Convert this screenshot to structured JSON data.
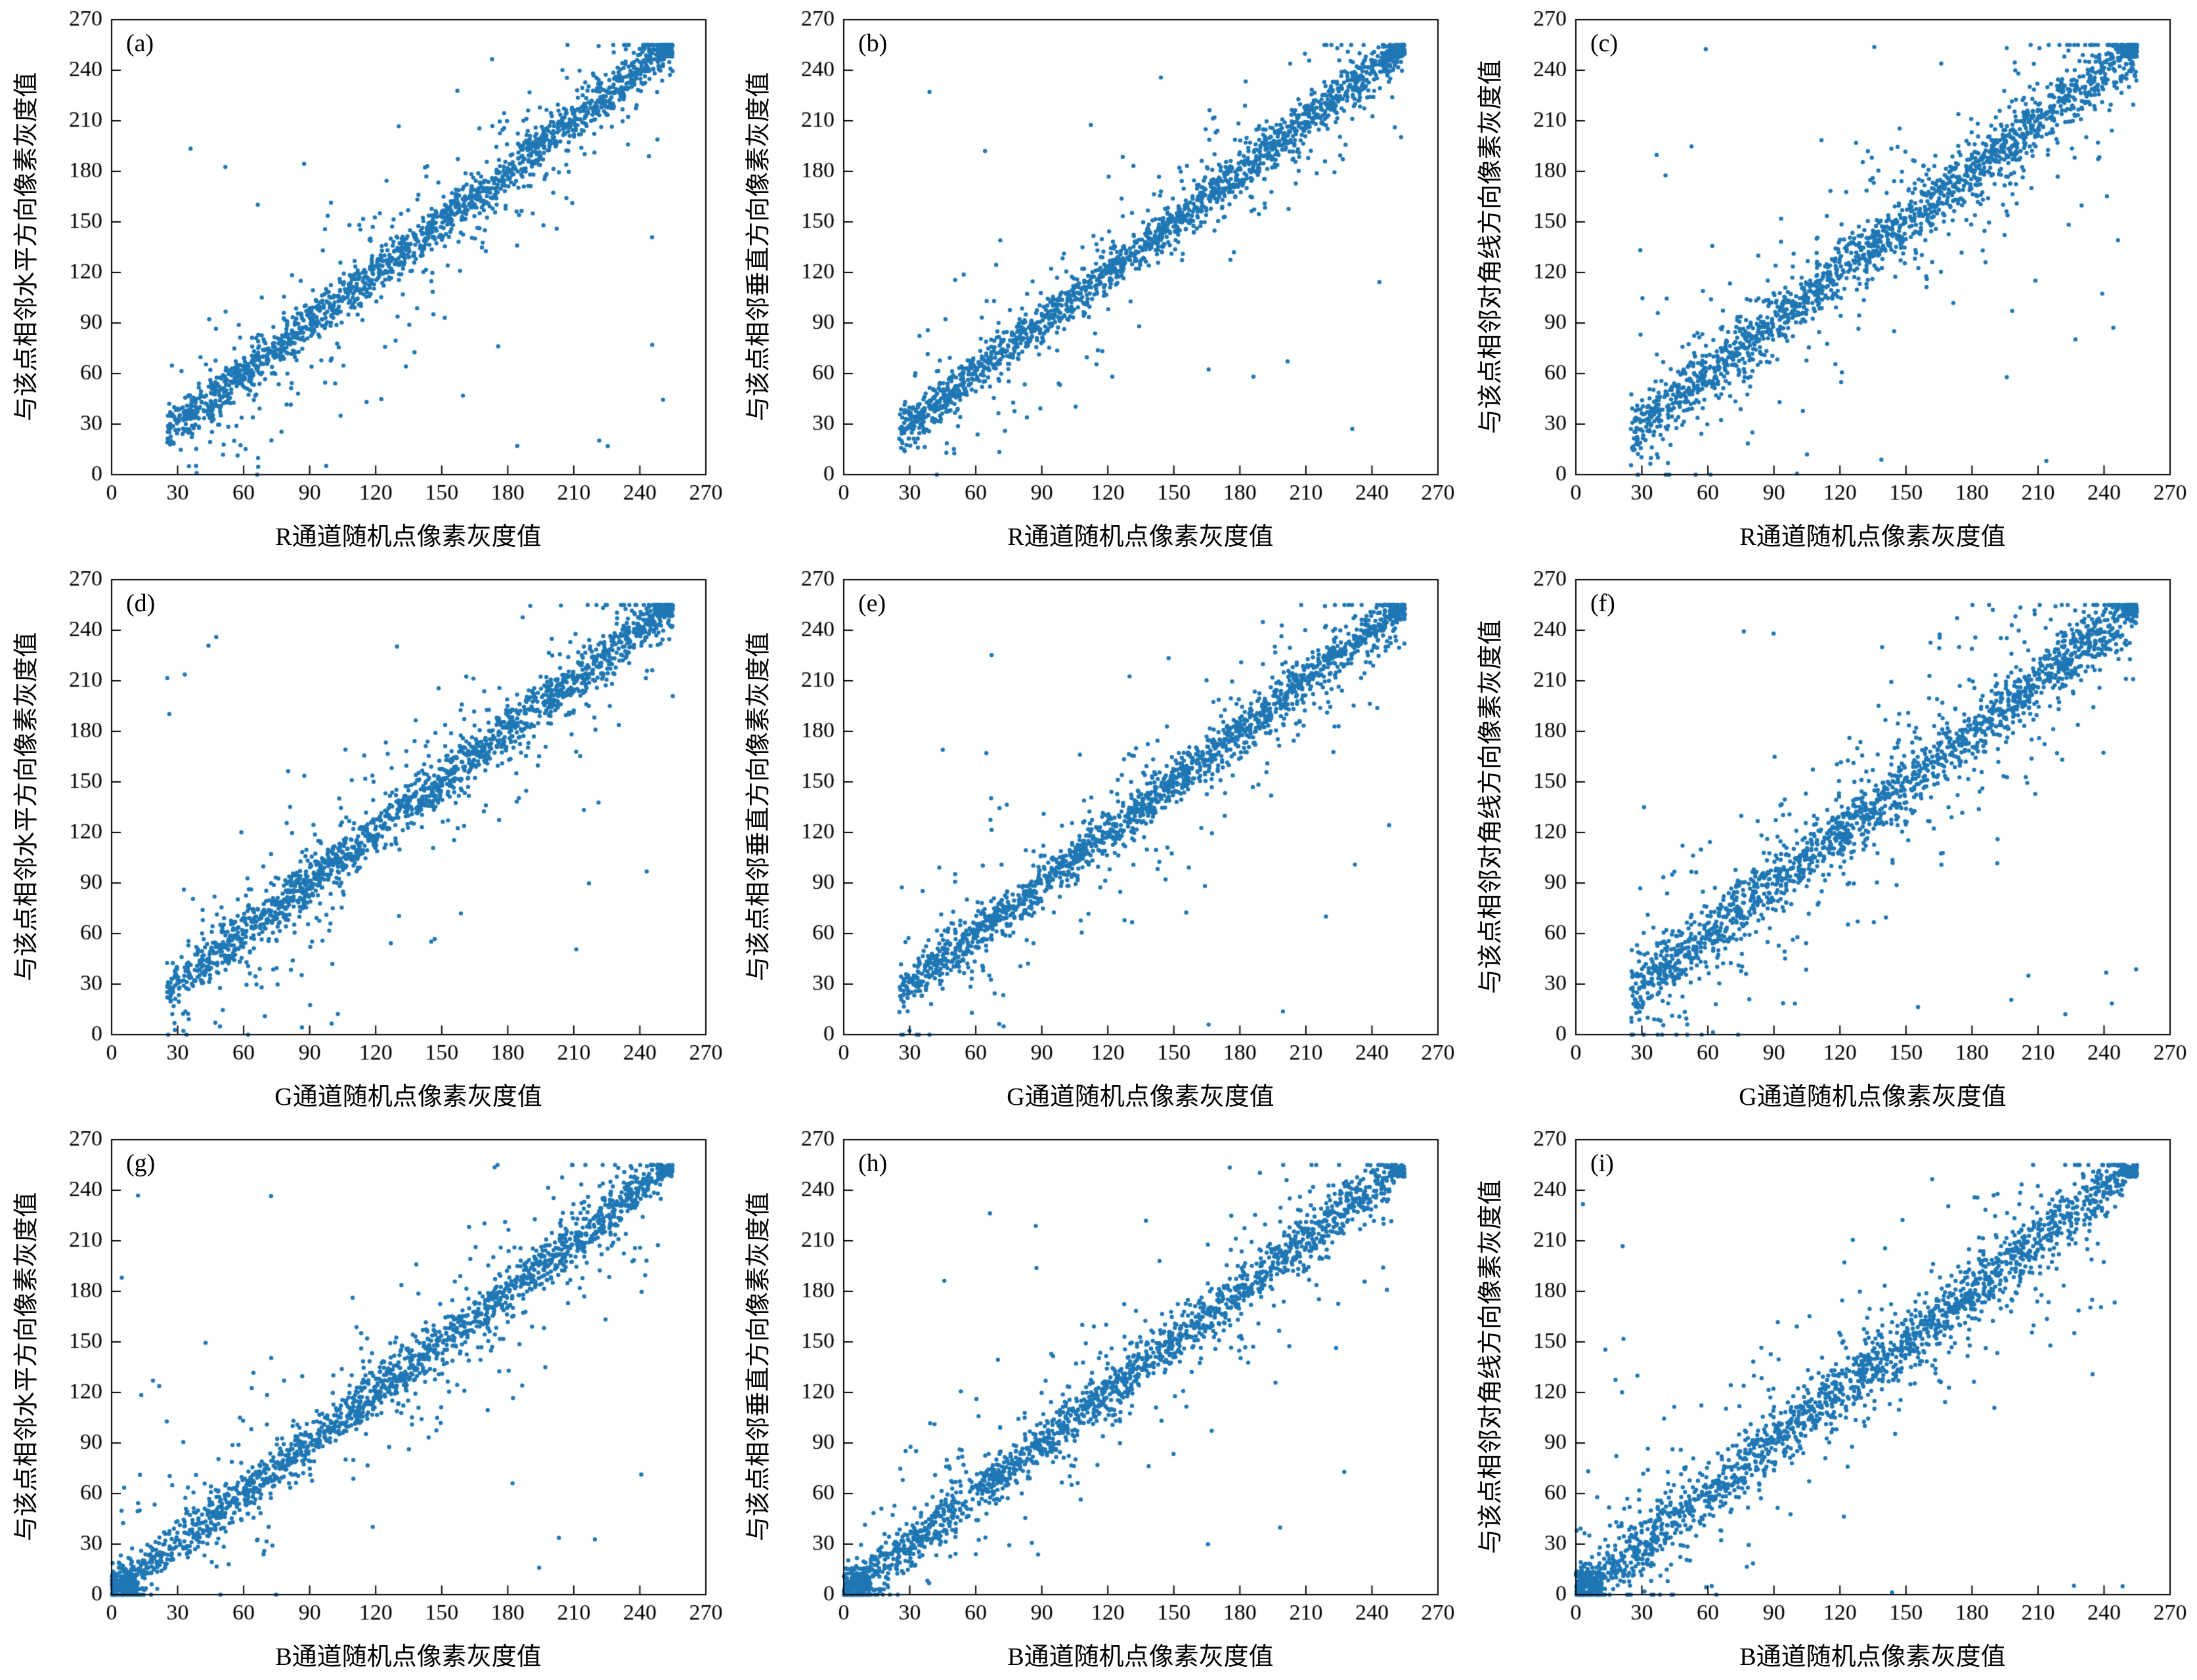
{
  "page": {
    "description": "3x3 grid of adjacent-pixel correlation scatter plots for R, G, B channels in horizontal, vertical and diagonal directions",
    "background_color": "#ffffff",
    "axis_color": "#000000"
  },
  "chart_data": [
    {
      "type": "scatter",
      "panel": "(a)",
      "xlabel": "R通道随机点像素灰度值",
      "ylabel": "与该点相邻水平方向像素灰度值",
      "xlim": [
        0,
        270
      ],
      "ylim": [
        0,
        270
      ],
      "xticks": [
        0,
        30,
        60,
        90,
        120,
        150,
        180,
        210,
        240,
        270
      ],
      "yticks": [
        0,
        30,
        60,
        90,
        120,
        150,
        180,
        210,
        240,
        270
      ],
      "marker_color": "#1f77b4",
      "legend": "none",
      "grid": false,
      "generation": {
        "seed": 11,
        "n_dense": 1500,
        "noise_dense": 6.5,
        "n_spread": 300,
        "noise_spread": 28,
        "n_outliers": 28,
        "x_min": 25,
        "x_max": 255,
        "saturation_cluster": 110,
        "origin_cluster": 0
      }
    },
    {
      "type": "scatter",
      "panel": "(b)",
      "xlabel": "R通道随机点像素灰度值",
      "ylabel": "与该点相邻垂直方向像素灰度值",
      "xlim": [
        0,
        270
      ],
      "ylim": [
        0,
        270
      ],
      "xticks": [
        0,
        30,
        60,
        90,
        120,
        150,
        180,
        210,
        240,
        270
      ],
      "yticks": [
        0,
        30,
        60,
        90,
        120,
        150,
        180,
        210,
        240,
        270
      ],
      "marker_color": "#1f77b4",
      "legend": "none",
      "grid": false,
      "generation": {
        "seed": 22,
        "n_dense": 1500,
        "noise_dense": 6.0,
        "n_spread": 300,
        "noise_spread": 25,
        "n_outliers": 20,
        "x_min": 25,
        "x_max": 255,
        "saturation_cluster": 110,
        "origin_cluster": 0
      }
    },
    {
      "type": "scatter",
      "panel": "(c)",
      "xlabel": "R通道随机点像素灰度值",
      "ylabel": "与该点相邻对角线方向像素灰度值",
      "xlim": [
        0,
        270
      ],
      "ylim": [
        0,
        270
      ],
      "xticks": [
        0,
        30,
        60,
        90,
        120,
        150,
        180,
        210,
        240,
        270
      ],
      "yticks": [
        0,
        30,
        60,
        90,
        120,
        150,
        180,
        210,
        240,
        270
      ],
      "marker_color": "#1f77b4",
      "legend": "none",
      "grid": false,
      "generation": {
        "seed": 33,
        "n_dense": 1500,
        "noise_dense": 8.0,
        "n_spread": 360,
        "noise_spread": 32,
        "n_outliers": 30,
        "x_min": 25,
        "x_max": 255,
        "saturation_cluster": 110,
        "origin_cluster": 0
      }
    },
    {
      "type": "scatter",
      "panel": "(d)",
      "xlabel": "G通道随机点像素灰度值",
      "ylabel": "与该点相邻水平方向像素灰度值",
      "xlim": [
        0,
        270
      ],
      "ylim": [
        0,
        270
      ],
      "xticks": [
        0,
        30,
        60,
        90,
        120,
        150,
        180,
        210,
        240,
        270
      ],
      "yticks": [
        0,
        30,
        60,
        90,
        120,
        150,
        180,
        210,
        240,
        270
      ],
      "marker_color": "#1f77b4",
      "legend": "none",
      "grid": false,
      "generation": {
        "seed": 44,
        "n_dense": 1500,
        "noise_dense": 7.0,
        "n_spread": 340,
        "noise_spread": 30,
        "n_outliers": 25,
        "x_min": 25,
        "x_max": 255,
        "saturation_cluster": 90,
        "origin_cluster": 0
      }
    },
    {
      "type": "scatter",
      "panel": "(e)",
      "xlabel": "G通道随机点像素灰度值",
      "ylabel": "与该点相邻垂直方向像素灰度值",
      "xlim": [
        0,
        270
      ],
      "ylim": [
        0,
        270
      ],
      "xticks": [
        0,
        30,
        60,
        90,
        120,
        150,
        180,
        210,
        240,
        270
      ],
      "yticks": [
        0,
        30,
        60,
        90,
        120,
        150,
        180,
        210,
        240,
        270
      ],
      "marker_color": "#1f77b4",
      "legend": "none",
      "grid": false,
      "generation": {
        "seed": 55,
        "n_dense": 1500,
        "noise_dense": 6.5,
        "n_spread": 320,
        "noise_spread": 27,
        "n_outliers": 18,
        "x_min": 25,
        "x_max": 255,
        "saturation_cluster": 90,
        "origin_cluster": 0
      }
    },
    {
      "type": "scatter",
      "panel": "(f)",
      "xlabel": "G通道随机点像素灰度值",
      "ylabel": "与该点相邻对角线方向像素灰度值",
      "xlim": [
        0,
        270
      ],
      "ylim": [
        0,
        270
      ],
      "xticks": [
        0,
        30,
        60,
        90,
        120,
        150,
        180,
        210,
        240,
        270
      ],
      "yticks": [
        0,
        30,
        60,
        90,
        120,
        150,
        180,
        210,
        240,
        270
      ],
      "marker_color": "#1f77b4",
      "legend": "none",
      "grid": false,
      "generation": {
        "seed": 66,
        "n_dense": 1500,
        "noise_dense": 8.5,
        "n_spread": 380,
        "noise_spread": 33,
        "n_outliers": 28,
        "x_min": 25,
        "x_max": 255,
        "saturation_cluster": 90,
        "origin_cluster": 0
      }
    },
    {
      "type": "scatter",
      "panel": "(g)",
      "xlabel": "B通道随机点像素灰度值",
      "ylabel": "与该点相邻水平方向像素灰度值",
      "xlim": [
        0,
        270
      ],
      "ylim": [
        0,
        270
      ],
      "xticks": [
        0,
        30,
        60,
        90,
        120,
        150,
        180,
        210,
        240,
        270
      ],
      "yticks": [
        0,
        30,
        60,
        90,
        120,
        150,
        180,
        210,
        240,
        270
      ],
      "marker_color": "#1f77b4",
      "legend": "none",
      "grid": false,
      "generation": {
        "seed": 77,
        "n_dense": 1500,
        "noise_dense": 7.0,
        "n_spread": 330,
        "noise_spread": 30,
        "n_outliers": 25,
        "x_min": 0,
        "x_max": 250,
        "saturation_cluster": 70,
        "origin_cluster": 140
      }
    },
    {
      "type": "scatter",
      "panel": "(h)",
      "xlabel": "B通道随机点像素灰度值",
      "ylabel": "与该点相邻垂直方向像素灰度值",
      "xlim": [
        0,
        270
      ],
      "ylim": [
        0,
        270
      ],
      "xticks": [
        0,
        30,
        60,
        90,
        120,
        150,
        180,
        210,
        240,
        270
      ],
      "yticks": [
        0,
        30,
        60,
        90,
        120,
        150,
        180,
        210,
        240,
        270
      ],
      "marker_color": "#1f77b4",
      "legend": "none",
      "grid": false,
      "generation": {
        "seed": 88,
        "n_dense": 1500,
        "noise_dense": 7.0,
        "n_spread": 330,
        "noise_spread": 28,
        "n_outliers": 20,
        "x_min": 0,
        "x_max": 250,
        "saturation_cluster": 70,
        "origin_cluster": 140
      }
    },
    {
      "type": "scatter",
      "panel": "(i)",
      "xlabel": "B通道随机点像素灰度值",
      "ylabel": "与该点相邻对角线方向像素灰度值",
      "xlim": [
        0,
        270
      ],
      "ylim": [
        0,
        270
      ],
      "xticks": [
        0,
        30,
        60,
        90,
        120,
        150,
        180,
        210,
        240,
        270
      ],
      "yticks": [
        0,
        30,
        60,
        90,
        120,
        150,
        180,
        210,
        240,
        270
      ],
      "marker_color": "#1f77b4",
      "legend": "none",
      "grid": false,
      "generation": {
        "seed": 99,
        "n_dense": 1500,
        "noise_dense": 9.0,
        "n_spread": 380,
        "noise_spread": 34,
        "n_outliers": 30,
        "x_min": 0,
        "x_max": 250,
        "saturation_cluster": 70,
        "origin_cluster": 140
      }
    }
  ]
}
